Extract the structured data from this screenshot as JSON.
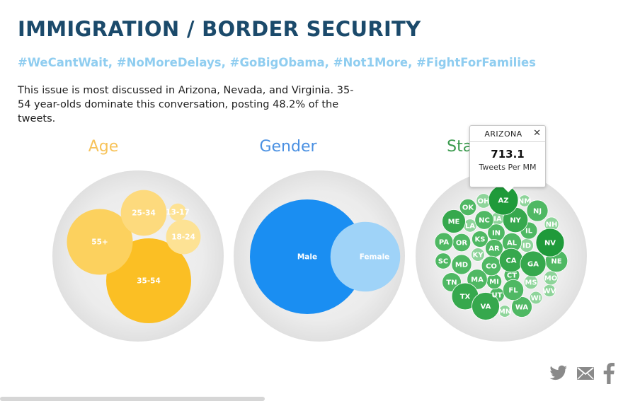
{
  "header": {
    "title": "IMMIGRATION / BORDER SECURITY",
    "hashtags": "#WeCantWait, #NoMoreDelays, #GoBigObama, #Not1More, #FightForFamilies",
    "description": "This issue is most discussed in Arizona, Nevada, and Virginia. 35-54 year-olds dominate this conversation, posting 48.2% of the tweets."
  },
  "colors": {
    "title": "#1b4a6b",
    "hashtags": "#8fcdf0",
    "age": "#f9b829",
    "gender": "#1a8ef2",
    "states": "#3a9a4d",
    "background_circle": "#e4e4e4"
  },
  "chart_data": [
    {
      "type": "bubble",
      "title": "Age",
      "series": [
        {
          "name": "35-54",
          "value": 48.2
        },
        {
          "name": "55+",
          "value": 29
        },
        {
          "name": "25-34",
          "value": 14
        },
        {
          "name": "18-24",
          "value": 8
        },
        {
          "name": "13-17",
          "value": 2
        }
      ]
    },
    {
      "type": "bubble",
      "title": "Gender",
      "series": [
        {
          "name": "Male",
          "value": 73
        },
        {
          "name": "Female",
          "value": 27
        }
      ]
    },
    {
      "type": "bubble",
      "title": "States",
      "unit": "Tweets Per MM",
      "series": [
        {
          "name": "AZ",
          "value": 713.1,
          "shade": 3
        },
        {
          "name": "NV",
          "value": 640,
          "shade": 3
        },
        {
          "name": "VA",
          "value": 600,
          "shade": 2
        },
        {
          "name": "TX",
          "value": 560,
          "shade": 2
        },
        {
          "name": "GA",
          "value": 500,
          "shade": 2
        },
        {
          "name": "NY",
          "value": 480,
          "shade": 2
        },
        {
          "name": "CA",
          "value": 420,
          "shade": 2
        },
        {
          "name": "ME",
          "value": 400,
          "shade": 2
        },
        {
          "name": "NE",
          "value": 360,
          "shade": 1
        },
        {
          "name": "NJ",
          "value": 320,
          "shade": 1
        },
        {
          "name": "FL",
          "value": 300,
          "shade": 1
        },
        {
          "name": "WA",
          "value": 290,
          "shade": 1
        },
        {
          "name": "MA",
          "value": 280,
          "shade": 1
        },
        {
          "name": "MD",
          "value": 270,
          "shade": 1
        },
        {
          "name": "CO",
          "value": 260,
          "shade": 1
        },
        {
          "name": "AL",
          "value": 250,
          "shade": 1
        },
        {
          "name": "TN",
          "value": 240,
          "shade": 1
        },
        {
          "name": "NC",
          "value": 230,
          "shade": 1
        },
        {
          "name": "PA",
          "value": 220,
          "shade": 1
        },
        {
          "name": "OR",
          "value": 210,
          "shade": 1
        },
        {
          "name": "AR",
          "value": 200,
          "shade": 1
        },
        {
          "name": "IN",
          "value": 190,
          "shade": 1
        },
        {
          "name": "IL",
          "value": 180,
          "shade": 1
        },
        {
          "name": "OK",
          "value": 170,
          "shade": 1
        },
        {
          "name": "KS",
          "value": 160,
          "shade": 1
        },
        {
          "name": "SC",
          "value": 150,
          "shade": 1
        },
        {
          "name": "CT",
          "value": 140,
          "shade": 1
        },
        {
          "name": "MI",
          "value": 130,
          "shade": 1
        },
        {
          "name": "UT",
          "value": 120,
          "shade": 1
        },
        {
          "name": "OH",
          "value": 115,
          "shade": 0
        },
        {
          "name": "NH",
          "value": 110,
          "shade": 0
        },
        {
          "name": "MO",
          "value": 105,
          "shade": 0
        },
        {
          "name": "MS",
          "value": 100,
          "shade": 0
        },
        {
          "name": "ID",
          "value": 95,
          "shade": 0
        },
        {
          "name": "KY",
          "value": 90,
          "shade": 0
        },
        {
          "name": "LA",
          "value": 85,
          "shade": 0
        },
        {
          "name": "IA",
          "value": 80,
          "shade": 0
        },
        {
          "name": "WI",
          "value": 75,
          "shade": 0
        },
        {
          "name": "WV",
          "value": 70,
          "shade": 0
        },
        {
          "name": "MN",
          "value": 65,
          "shade": 0
        },
        {
          "name": "NM",
          "value": 60,
          "shade": 0
        }
      ]
    }
  ],
  "tooltip": {
    "state": "ARIZONA",
    "value": "713.1",
    "unit": "Tweets Per MM"
  },
  "share": {
    "icons": [
      "twitter-icon",
      "email-icon",
      "facebook-icon"
    ]
  }
}
